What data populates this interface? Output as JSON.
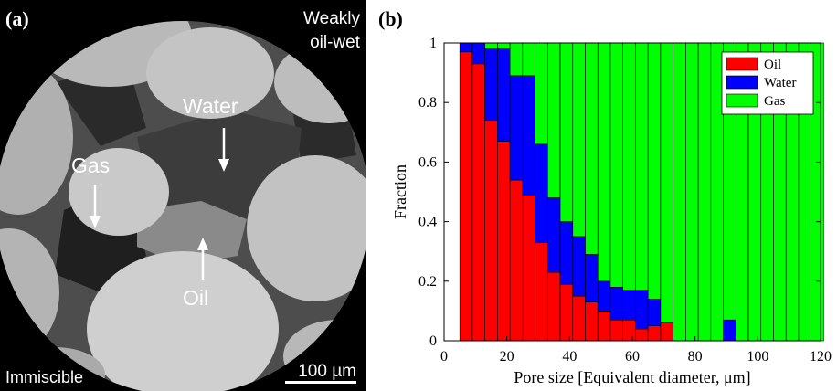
{
  "panel_a": {
    "tag": "(a)",
    "wettability_line1": "Weakly",
    "wettability_line2": "oil-wet",
    "condition": "Immiscible",
    "scale_bar": "100 µm",
    "labels": {
      "water": "Water",
      "gas": "Gas",
      "oil": "Oil"
    }
  },
  "panel_b": {
    "tag": "(b)"
  },
  "chart_data": {
    "type": "bar",
    "stacked": true,
    "xlabel": "Pore size [Equivalent diameter, μm]",
    "ylabel": "Fraction",
    "xlim": [
      0,
      120
    ],
    "ylim": [
      0,
      1
    ],
    "xticks": [
      0,
      20,
      40,
      60,
      80,
      100,
      120
    ],
    "yticks": [
      0,
      0.2,
      0.4,
      0.6,
      0.8,
      1
    ],
    "bin_width": 4,
    "x": [
      7,
      11,
      15,
      19,
      23,
      27,
      31,
      35,
      39,
      43,
      47,
      51,
      55,
      59,
      63,
      67,
      71,
      75,
      79,
      83,
      87,
      91,
      95,
      99,
      103,
      107,
      111,
      115,
      119
    ],
    "series": [
      {
        "name": "Oil",
        "color": "#ff0000",
        "values": [
          0.97,
          0.93,
          0.74,
          0.67,
          0.54,
          0.49,
          0.33,
          0.23,
          0.19,
          0.15,
          0.13,
          0.1,
          0.07,
          0.07,
          0.04,
          0.05,
          0.06,
          0.0,
          0.0,
          0.0,
          0.0,
          0.0,
          0.0,
          0.0,
          0.0,
          0.0,
          0.0,
          0.0,
          0.0
        ]
      },
      {
        "name": "Water",
        "color": "#0000ff",
        "values": [
          0.03,
          0.07,
          0.24,
          0.31,
          0.35,
          0.4,
          0.33,
          0.25,
          0.21,
          0.2,
          0.16,
          0.1,
          0.11,
          0.1,
          0.13,
          0.09,
          0.0,
          0.0,
          0.0,
          0.0,
          0.0,
          0.07,
          0.0,
          0.0,
          0.0,
          0.0,
          0.0,
          0.0,
          0.0
        ]
      },
      {
        "name": "Gas",
        "color": "#00ff00",
        "values": [
          0.0,
          0.0,
          0.02,
          0.02,
          0.11,
          0.11,
          0.34,
          0.52,
          0.6,
          0.65,
          0.71,
          0.8,
          0.82,
          0.83,
          0.83,
          0.86,
          0.94,
          1.0,
          1.0,
          1.0,
          1.0,
          0.93,
          1.0,
          1.0,
          1.0,
          1.0,
          1.0,
          1.0,
          1.0
        ]
      }
    ],
    "legend": [
      "Oil",
      "Water",
      "Gas"
    ],
    "legend_position": "top-right",
    "grid": false
  }
}
